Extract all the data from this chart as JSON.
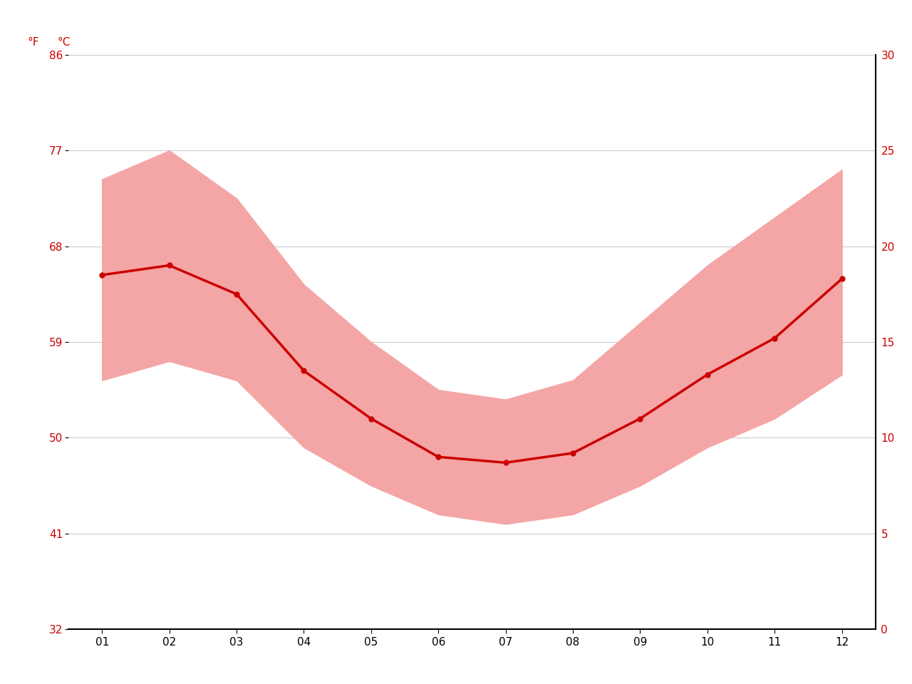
{
  "months": [
    "01",
    "02",
    "03",
    "04",
    "05",
    "06",
    "07",
    "08",
    "09",
    "10",
    "11",
    "12"
  ],
  "month_positions": [
    1,
    2,
    3,
    4,
    5,
    6,
    7,
    8,
    9,
    10,
    11,
    12
  ],
  "mean_temps_c": [
    18.5,
    19.0,
    17.5,
    13.5,
    11.0,
    9.0,
    8.7,
    9.2,
    11.0,
    13.3,
    15.2,
    18.3
  ],
  "max_temps_c": [
    23.5,
    25.0,
    22.5,
    18.0,
    15.0,
    12.5,
    12.0,
    13.0,
    16.0,
    19.0,
    21.5,
    24.0
  ],
  "min_temps_c": [
    13.0,
    14.0,
    13.0,
    9.5,
    7.5,
    6.0,
    5.5,
    6.0,
    7.5,
    9.5,
    11.0,
    13.3
  ],
  "ylim_c": [
    0,
    30
  ],
  "yticks_c": [
    0,
    5,
    10,
    15,
    20,
    25,
    30
  ],
  "yticks_f": [
    32,
    41,
    50,
    59,
    68,
    77,
    86
  ],
  "line_color": "#cc0000",
  "fill_color": "#f4a5a5",
  "line_width": 2.5,
  "marker_size": 5,
  "background_color": "#ffffff",
  "grid_color": "#cccccc",
  "tick_label_color": "#cc0000"
}
